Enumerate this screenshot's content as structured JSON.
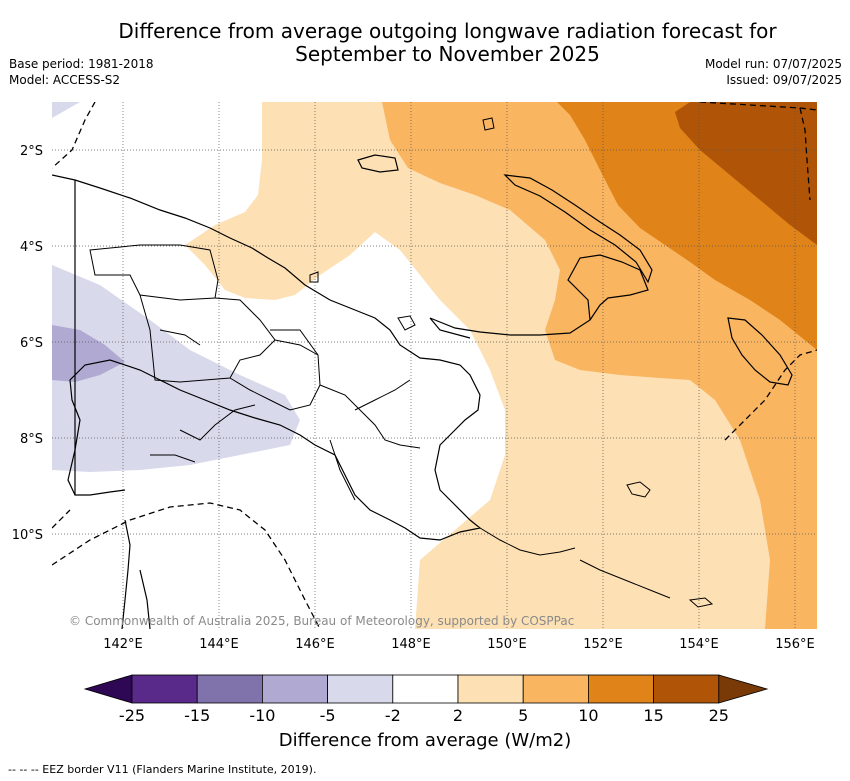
{
  "title": "Difference from average outgoing longwave radiation forecast for September to November 2025",
  "meta_left": [
    "Base period: 1981-2018",
    "Model: ACCESS-S2"
  ],
  "meta_right": [
    "Model run: 07/07/2025",
    "Issued: 09/07/2025"
  ],
  "map": {
    "region": "Papua New Guinea",
    "lat_ticks": [
      "2°S",
      "4°S",
      "6°S",
      "8°S",
      "10°S"
    ],
    "lon_ticks": [
      "142°E",
      "144°E",
      "146°E",
      "148°E",
      "150°E",
      "152°E",
      "154°E",
      "156°E"
    ],
    "copyright": "© Commonwealth of Australia 2025, Bureau of Meteorology, supported by COSPPac"
  },
  "colorbar": {
    "ticks": [
      "-25",
      "-15",
      "-10",
      "-5",
      "-2",
      "2",
      "5",
      "10",
      "15",
      "25"
    ],
    "colors": [
      "#2e0854",
      "#5a2a8a",
      "#8072aa",
      "#b0a9d2",
      "#d9d9ec",
      "#ffffff",
      "#fde0b4",
      "#fab561",
      "#e08318",
      "#b05508",
      "#7a3a08"
    ],
    "label": "Difference from average (W/m2)"
  },
  "footnote": "-- -- -- EEZ border V11 (Flanders Marine Institute, 2019)."
}
